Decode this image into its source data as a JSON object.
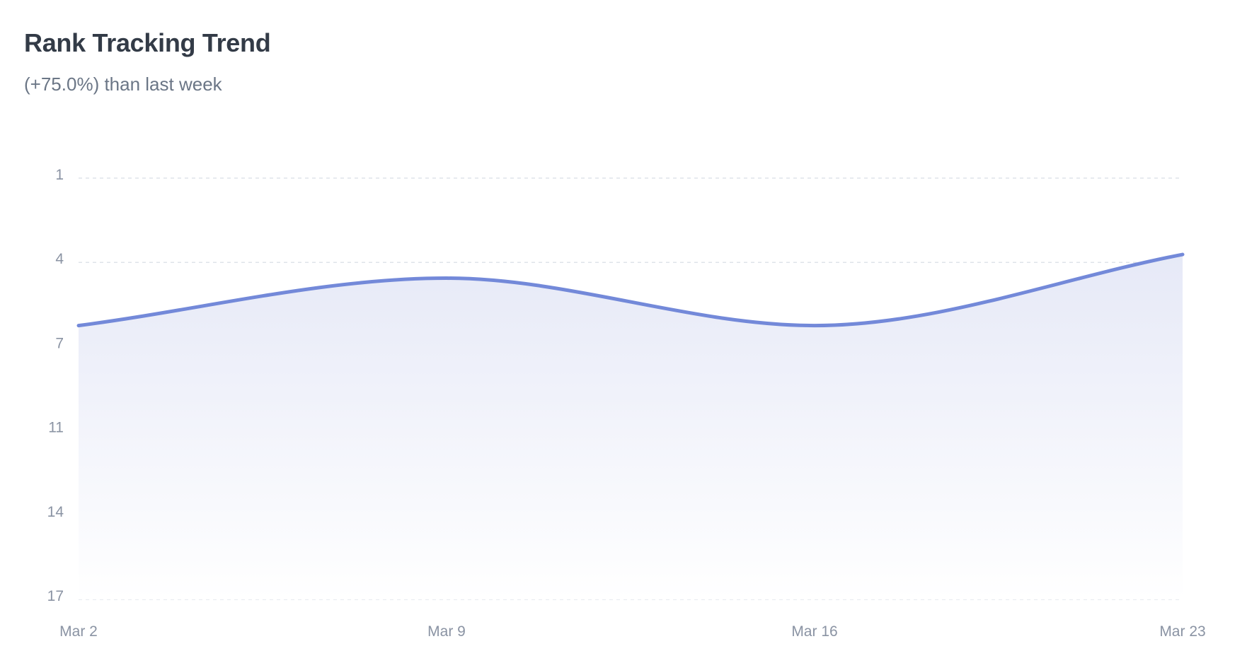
{
  "header": {
    "title": "Rank Tracking Trend",
    "subtitle": "(+75.0%) than last week"
  },
  "colors": {
    "line": "#7389d9",
    "area_top": "#e6e9f7",
    "area_bottom": "#ffffff",
    "grid": "#dfe3ea",
    "tick_text": "#8a93a3",
    "title": "#333b47",
    "subtitle": "#6b7686"
  },
  "chart_data": {
    "type": "area",
    "title": "Rank Tracking Trend",
    "subtitle": "(+75.0%) than last week",
    "xlabel": "",
    "ylabel": "",
    "x": [
      "Mar 2",
      "Mar 9",
      "Mar 16",
      "Mar 23"
    ],
    "series": [
      {
        "values": [
          6.6,
          4.8,
          6.6,
          3.9
        ]
      }
    ],
    "y_ticks": [
      1,
      4,
      7,
      11,
      14,
      17
    ],
    "ylim": [
      1,
      17
    ],
    "y_reversed": true,
    "grid": true,
    "grid_style": "dashed",
    "legend": "none",
    "curve": "smooth"
  }
}
